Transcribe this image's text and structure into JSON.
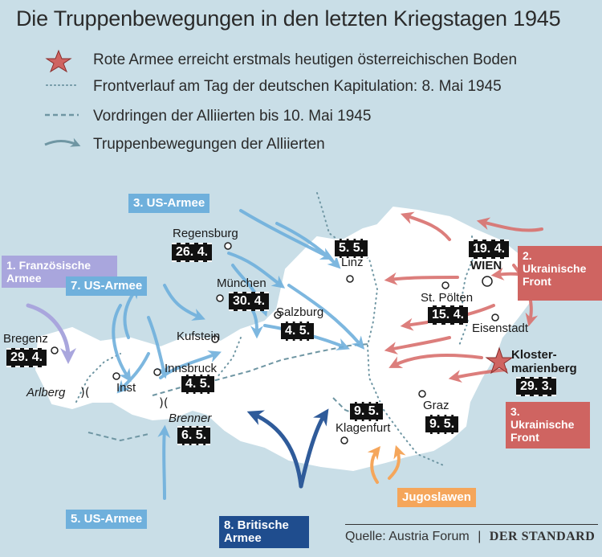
{
  "title": "Die Truppenbewegungen in den letzten Kriegstagen 1945",
  "legend": [
    {
      "icon": "red-star-icon",
      "text": "Rote Armee erreicht erstmals heutigen österreichischen Boden"
    },
    {
      "icon": "dotted-line-icon",
      "text": "Frontverlauf am Tag der deutschen Kapitulation: 8. Mai 1945"
    },
    {
      "icon": "dashed-line-icon",
      "text": "Vordringen der Alliierten bis 10. Mai 1945"
    },
    {
      "icon": "arrow-icon",
      "text": "Truppenbewegungen der Alliierten"
    }
  ],
  "colors": {
    "background": "#c9dee7",
    "land": "#ffffff",
    "us": "#6fb0dc",
    "soviet": "#cf6461",
    "french": "#a9a6dd",
    "british": "#1f4d8e",
    "yugoslav": "#f5a65b",
    "front": "#6f96a3"
  },
  "cities": {
    "regensburg": "Regensburg",
    "linz": "Linz",
    "wien": "WIEN",
    "muenchen": "München",
    "salzburg": "Salzburg",
    "stpoelten": "St. Pölten",
    "eisenstadt": "Eisenstadt",
    "kufstein": "Kufstein",
    "bregenz": "Bregenz",
    "innsbruck": "Innsbruck",
    "inst": "Inst",
    "arlberg": "Arlberg",
    "brenner": "Brenner",
    "klagenfurt": "Klagenfurt",
    "graz": "Graz",
    "klostermarienberg_1": "Kloster-",
    "klostermarienberg_2": "marienberg"
  },
  "dates": {
    "regensburg": "26. 4.",
    "linz": "5. 5.",
    "wien": "19. 4.",
    "muenchen": "30. 4.",
    "salzburg": "4. 5.",
    "stpoelten": "15. 4.",
    "bregenz": "29. 4.",
    "innsbruck": "4. 5.",
    "brenner": "6. 5.",
    "klagenfurt": "9. 5.",
    "graz": "9. 5.",
    "klostermarienberg": "29. 3."
  },
  "armies": {
    "us3": "3. US-Armee",
    "fr1_1": "1. Französische",
    "fr1_2": "Armee",
    "us7": "7. US-Armee",
    "ukr2_1": "2.",
    "ukr2_2": "Ukrainische",
    "ukr2_3": "Front",
    "ukr3_1": "3.",
    "ukr3_2": "Ukrainische",
    "ukr3_3": "Front",
    "us5": "5. US-Armee",
    "brit8_1": "8. Britische",
    "brit8_2": "Armee",
    "yugo": "Jugoslawen"
  },
  "source": {
    "label": "Quelle: Austria Forum",
    "separator": "|",
    "publisher": "DER STANDARD"
  }
}
